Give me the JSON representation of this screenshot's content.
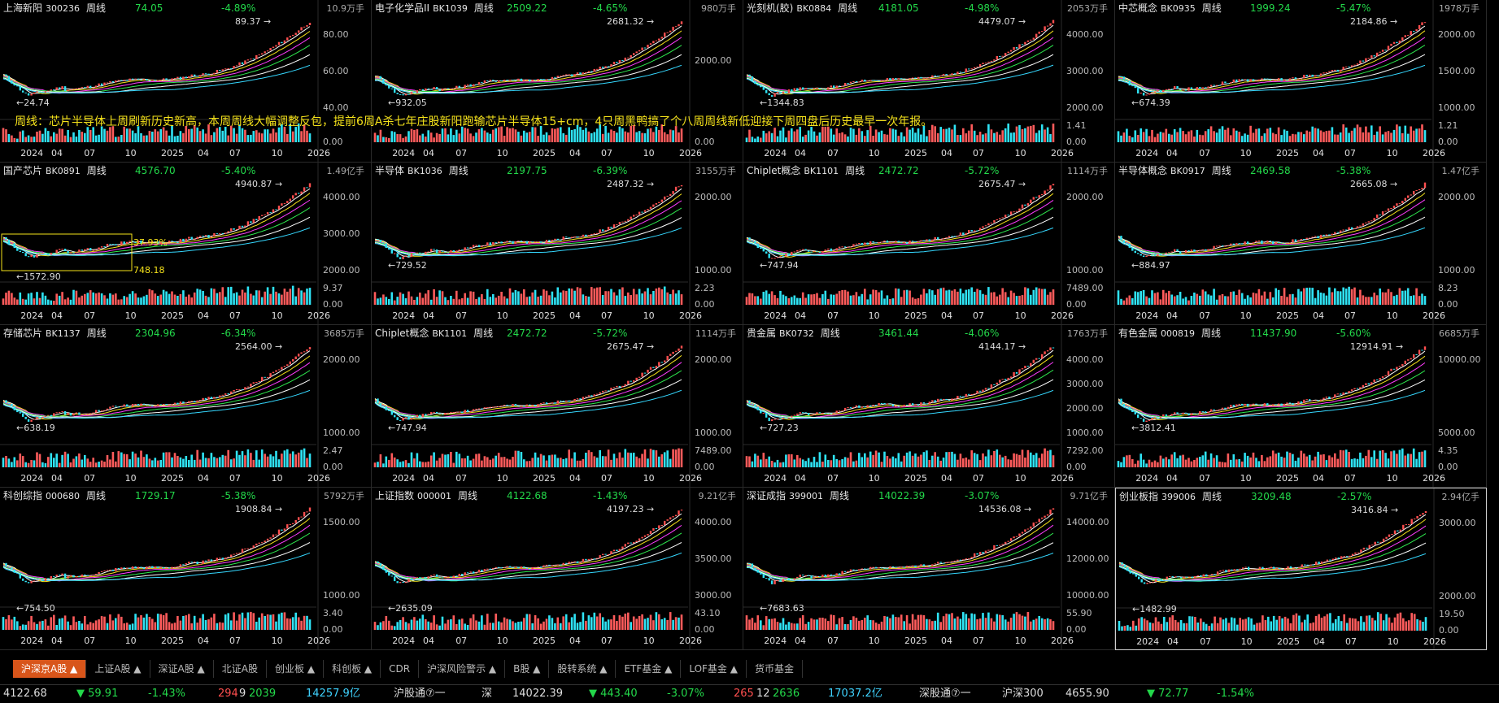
{
  "annotation": "周线：芯片半导体上周刷新历史新高，本周周线大幅调整反包，提前6周A杀七年庄股新阳跑输芯片半导体15+cm，4只周黑鸭搞了个八周周线新低迎接下周四盘后历史最早一次年报。",
  "x_ticks": [
    "2024",
    "04",
    "07",
    "10",
    "2025",
    "04",
    "07",
    "10",
    "2026"
  ],
  "panels": [
    {
      "name": "上海新阳",
      "code": "300236",
      "period": "周线",
      "price": "74.05",
      "pct": "-4.89%",
      "vol_max": "10.9万手",
      "vol_ticks": [
        "0.00"
      ],
      "y_ticks": [
        "80.00",
        "60.00",
        "40.00"
      ],
      "high": "89.37",
      "low": "24.74"
    },
    {
      "name": "电子化学品II",
      "code": "BK1039",
      "period": "周线",
      "price": "2509.22",
      "pct": "-4.65%",
      "vol_max": "980万手",
      "vol_ticks": [
        "0.00"
      ],
      "y_ticks": [
        "2000.00"
      ],
      "high": "2681.32",
      "low": "932.05"
    },
    {
      "name": "光刻机(胶)",
      "code": "BK0884",
      "period": "周线",
      "price": "4181.05",
      "pct": "-4.98%",
      "vol_max": "2053万手",
      "vol_ticks": [
        "1.41",
        "0.00"
      ],
      "y_ticks": [
        "4000.00",
        "3000.00",
        "2000.00"
      ],
      "high": "4479.07",
      "low": "1344.83"
    },
    {
      "name": "中芯概念",
      "code": "BK0935",
      "period": "周线",
      "price": "1999.24",
      "pct": "-5.47%",
      "vol_max": "1978万手",
      "vol_ticks": [
        "1.21",
        "0.00"
      ],
      "y_ticks": [
        "2000.00",
        "1500.00",
        "1000.00"
      ],
      "high": "2184.86",
      "low": "674.39"
    },
    {
      "name": "国产芯片",
      "code": "BK0891",
      "period": "周线",
      "price": "4576.70",
      "pct": "-5.40%",
      "vol_max": "1.49亿手",
      "vol_ticks": [
        "9.37",
        "0.00"
      ],
      "y_ticks": [
        "4000.00",
        "3000.00",
        "2000.00"
      ],
      "high": "4940.87",
      "low": "1572.90",
      "box_pct": "37.93%",
      "box_val": "748.18"
    },
    {
      "name": "半导体",
      "code": "BK1036",
      "period": "周线",
      "price": "2197.75",
      "pct": "-6.39%",
      "vol_max": "3155万手",
      "vol_ticks": [
        "2.23",
        "0.00"
      ],
      "y_ticks": [
        "2000.00",
        "1000.00"
      ],
      "high": "2487.32",
      "low": "729.52"
    },
    {
      "name": "Chiplet概念",
      "code": "BK1101",
      "period": "周线",
      "price": "2472.72",
      "pct": "-5.72%",
      "vol_max": "1114万手",
      "vol_ticks": [
        "7489.00",
        "0.00"
      ],
      "y_ticks": [
        "2000.00",
        "1000.00"
      ],
      "high": "2675.47",
      "low": "747.94"
    },
    {
      "name": "半导体概念",
      "code": "BK0917",
      "period": "周线",
      "price": "2469.58",
      "pct": "-5.38%",
      "vol_max": "1.47亿手",
      "vol_ticks": [
        "8.23",
        "0.00"
      ],
      "y_ticks": [
        "2000.00",
        "1000.00"
      ],
      "high": "2665.08",
      "low": "884.97"
    },
    {
      "name": "存储芯片",
      "code": "BK1137",
      "period": "周线",
      "price": "2304.96",
      "pct": "-6.34%",
      "vol_max": "3685万手",
      "vol_ticks": [
        "2.47",
        "0.00"
      ],
      "y_ticks": [
        "2000.00",
        "1000.00"
      ],
      "high": "2564.00",
      "low": "638.19"
    },
    {
      "name": "Chiplet概念",
      "code": "BK1101",
      "period": "周线",
      "price": "2472.72",
      "pct": "-5.72%",
      "vol_max": "1114万手",
      "vol_ticks": [
        "7489.00",
        "0.00"
      ],
      "y_ticks": [
        "2000.00",
        "1000.00"
      ],
      "high": "2675.47",
      "low": "747.94"
    },
    {
      "name": "贵金属",
      "code": "BK0732",
      "period": "周线",
      "price": "3461.44",
      "pct": "-4.06%",
      "vol_max": "1763万手",
      "vol_ticks": [
        "7292.00",
        "0.00"
      ],
      "y_ticks": [
        "4000.00",
        "3000.00",
        "2000.00",
        "1000.00"
      ],
      "high": "4144.17",
      "low": "727.23"
    },
    {
      "name": "有色金属",
      "code": "000819",
      "period": "周线",
      "price": "11437.90",
      "pct": "-5.60%",
      "vol_max": "6685万手",
      "vol_ticks": [
        "4.35",
        "0.00"
      ],
      "y_ticks": [
        "10000.00",
        "5000.00"
      ],
      "high": "12914.91",
      "low": "3812.41"
    },
    {
      "name": "科创综指",
      "code": "000680",
      "period": "周线",
      "price": "1729.17",
      "pct": "-5.38%",
      "vol_max": "5792万手",
      "vol_ticks": [
        "3.40",
        "0.00"
      ],
      "y_ticks": [
        "1500.00",
        "1000.00"
      ],
      "high": "1908.84",
      "low": "754.50"
    },
    {
      "name": "上证指数",
      "code": "000001",
      "period": "周线",
      "price": "4122.68",
      "pct": "-1.43%",
      "vol_max": "9.21亿手",
      "vol_ticks": [
        "43.10",
        "0.00"
      ],
      "y_ticks": [
        "4000.00",
        "3500.00",
        "3000.00"
      ],
      "high": "4197.23",
      "low": "2635.09"
    },
    {
      "name": "深证成指",
      "code": "399001",
      "period": "周线",
      "price": "14022.39",
      "pct": "-3.07%",
      "vol_max": "9.71亿手",
      "vol_ticks": [
        "55.90",
        "0.00"
      ],
      "y_ticks": [
        "14000.00",
        "12000.00",
        "10000.00"
      ],
      "high": "14536.08",
      "low": "7683.63"
    },
    {
      "name": "创业板指",
      "code": "399006",
      "period": "周线",
      "price": "3209.48",
      "pct": "-2.57%",
      "vol_max": "2.94亿手",
      "vol_ticks": [
        "19.50",
        "0.00"
      ],
      "y_ticks": [
        "3000.00",
        "2000.00"
      ],
      "high": "3416.84",
      "low": "1482.99"
    }
  ],
  "tabs": [
    "沪深京A股 ▲",
    "上证A股 ▲",
    "深证A股 ▲",
    "北证A股",
    "创业板 ▲",
    "科创板 ▲",
    "CDR",
    "沪深风险警示 ▲",
    "B股 ▲",
    "股转系统 ▲",
    "ETF基金 ▲",
    "LOF基金 ▲",
    "货币基金"
  ],
  "status": {
    "sh_index": "4122.68",
    "sh_chg": "▼ 59.91",
    "sh_pct": "-1.43%",
    "sh_up": "294",
    "sh_flat": "9",
    "sh_down": "2039",
    "sh_amount": "14257.9亿",
    "hgt": "沪股通⑦一",
    "sz_label": "深",
    "sz_index": "14022.39",
    "sz_chg": "▼ 443.40",
    "sz_pct": "-3.07%",
    "sz_up": "265",
    "sz_flat": "12",
    "sz_down": "2636",
    "sz_amount": "17037.2亿",
    "sgt": "深股通⑦一",
    "hs300_label": "沪深300",
    "hs300": "4655.90",
    "hs300_chg": "▼ 72.77",
    "hs300_pct": "-1.54%"
  },
  "colors": {
    "up": "#ff4f4f",
    "down": "#23d84a",
    "vol_up": "#ff5b5b",
    "vol_down": "#2fe3f5",
    "annotation": "#f5e21a",
    "tab_active": "#d8551a"
  }
}
